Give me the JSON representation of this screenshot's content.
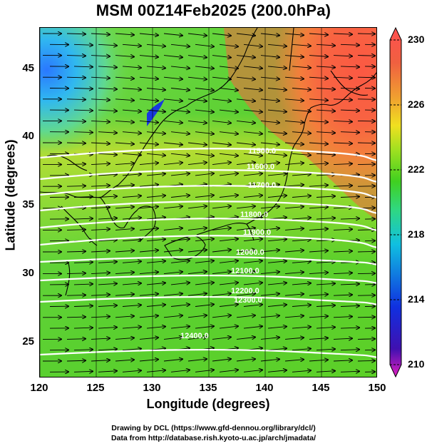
{
  "title": "MSM 00Z14Feb2025 (200.0hPa)",
  "xaxis": {
    "label": "Longitude (degrees)",
    "range": [
      120,
      150
    ],
    "ticks": [
      "120",
      "125",
      "130",
      "135",
      "140",
      "145",
      "150"
    ]
  },
  "yaxis": {
    "label": "Latitude (degrees)",
    "range": [
      22.4,
      48
    ],
    "ticks": [
      "25",
      "30",
      "35",
      "40",
      "45"
    ]
  },
  "colorbar": {
    "range": [
      210,
      230
    ],
    "labels": [
      "230",
      "226",
      "222",
      "218",
      "214",
      "210"
    ],
    "colors": [
      "#e020c0",
      "#4010b0",
      "#1030e0",
      "#10c0e0",
      "#30d880",
      "#40d020",
      "#a0e020",
      "#f0e020",
      "#f0a030",
      "#f06040",
      "#ff5050"
    ]
  },
  "contours": {
    "labels": [
      "11500.0",
      "11600.0",
      "11700.0",
      "11800.0",
      "11900.0",
      "12000.0",
      "12100.0",
      "12200.0",
      "12300.0",
      "12400.0"
    ]
  },
  "footer": {
    "line1": "Drawing by DCL (https://www.gfd-dennou.org/library/dcl/)",
    "line2": "Data from http://database.rish.kyoto-u.ac.jp/arch/jmadata/"
  }
}
